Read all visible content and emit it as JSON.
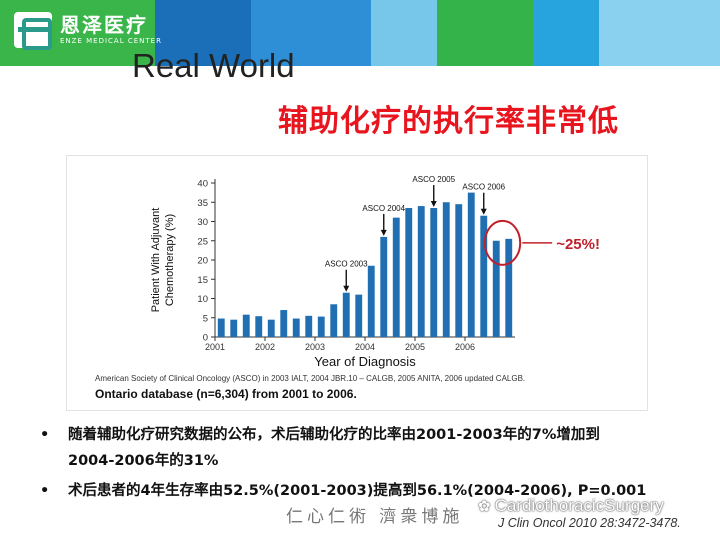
{
  "header": {
    "logo_cn": "恩泽医疗",
    "logo_en": "ENZE MEDICAL CENTER",
    "bar_colors": [
      "#3ab54a",
      "#1b6fb8",
      "#2f8fd6",
      "#76c7ea",
      "#34b34a",
      "#27a3dd",
      "#8ad0ef"
    ]
  },
  "slide": {
    "subtitle": "Real World",
    "title": "辅助化疗的执行率非常低",
    "annotation": "~25%!",
    "bullets": [
      {
        "dot": "•",
        "line1": "随着辅助化疗研究数据的公布，术后辅助化疗的比率由2001-2003年的7%增加到",
        "line2": "2004-2006年的31%"
      },
      {
        "dot": "•",
        "line1": "术后患者的4年生存率由52.5%(2001-2003)提高到56.1%(2004-2006), P=0.001",
        "line2": ""
      }
    ],
    "footer_calligraphy": "仁心仁術 濟衆博施",
    "wechat_label": "CardiothoracicSurgery",
    "citation": "J Clin Oncol 2010 28:3472-3478."
  },
  "chart_data": {
    "type": "bar",
    "xlabel": "Year of Diagnosis",
    "ylabel_line1": "Patient With Adjuvant",
    "ylabel_line2": "Chemotherapy (%)",
    "ylim": [
      0,
      40
    ],
    "yticks": [
      0,
      5,
      10,
      15,
      20,
      25,
      30,
      35,
      40
    ],
    "x_tick_labels": [
      "2001",
      "2002",
      "2003",
      "2004",
      "2005",
      "2006"
    ],
    "bars_per_year": 4,
    "values": [
      4.8,
      4.5,
      5.8,
      5.4,
      4.5,
      7.0,
      4.8,
      5.5,
      5.3,
      8.5,
      11.5,
      11.0,
      18.5,
      26.0,
      31.0,
      33.5,
      34.0,
      33.5,
      35.0,
      34.5,
      37.5,
      31.5,
      25.0,
      25.5
    ],
    "bar_color": "#1f6fb2",
    "events": [
      {
        "label": "ASCO 2003",
        "bar_index": 10
      },
      {
        "label": "ASCO 2004",
        "bar_index": 13
      },
      {
        "label": "ASCO 2005",
        "bar_index": 17
      },
      {
        "label": "ASCO 2006",
        "bar_index": 21
      }
    ],
    "highlight_bars": [
      22,
      23
    ],
    "highlight_color": "#c0202a",
    "source_note": "American Society of Clinical Oncology (ASCO) in 2003 IALT, 2004 JBR.10 – CALGB, 2005 ANITA, 2006 updated CALGB.",
    "caption": "Ontario database (n=6,304) from 2001 to 2006.",
    "grid": false
  }
}
